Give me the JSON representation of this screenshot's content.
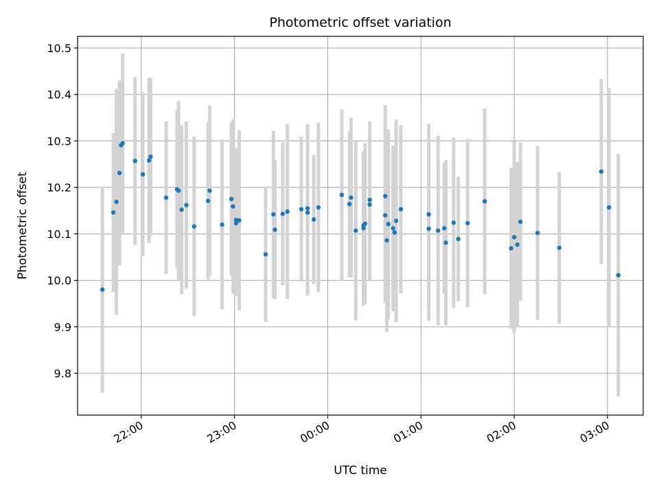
{
  "chart_data": {
    "type": "scatter",
    "title": "Photometric offset variation",
    "xlabel": "UTC time",
    "ylabel": "Photometric offset",
    "x_tick_labels": [
      "22:00",
      "23:00",
      "00:00",
      "01:00",
      "02:00",
      "03:00"
    ],
    "y_tick_labels": [
      "9.8",
      "9.9",
      "10.0",
      "10.1",
      "10.2",
      "10.3",
      "10.4",
      "10.5"
    ],
    "xlim": [
      "21:19",
      "03:23"
    ],
    "ylim": [
      9.71,
      10.525
    ],
    "grid": true,
    "colors": {
      "point": "#1f77b4",
      "error_bar": "#d3d3d3",
      "grid": "#b0b0b0"
    },
    "series": [
      {
        "points": [
          {
            "t": "21:35",
            "y": 9.98,
            "err": 0.222
          },
          {
            "t": "21:42",
            "y": 10.146,
            "err": 0.171
          },
          {
            "t": "21:44",
            "y": 10.169,
            "err": 0.243
          },
          {
            "t": "21:46",
            "y": 10.231,
            "err": 0.199
          },
          {
            "t": "21:47",
            "y": 10.291,
            "err": 0.136
          },
          {
            "t": "21:48",
            "y": 10.295,
            "err": 0.193
          },
          {
            "t": "21:56",
            "y": 10.257,
            "err": 0.181
          },
          {
            "t": "22:01",
            "y": 10.228,
            "err": 0.176
          },
          {
            "t": "22:05",
            "y": 10.258,
            "err": 0.178
          },
          {
            "t": "22:06",
            "y": 10.266,
            "err": 0.17
          },
          {
            "t": "22:16",
            "y": 10.178,
            "err": 0.164
          },
          {
            "t": "22:23",
            "y": 10.196,
            "err": 0.17
          },
          {
            "t": "22:24",
            "y": 10.193,
            "err": 0.193
          },
          {
            "t": "22:26",
            "y": 10.152,
            "err": 0.182
          },
          {
            "t": "22:29",
            "y": 10.162,
            "err": 0.18
          },
          {
            "t": "22:34",
            "y": 10.116,
            "err": 0.193
          },
          {
            "t": "22:43",
            "y": 10.171,
            "err": 0.169
          },
          {
            "t": "22:44",
            "y": 10.193,
            "err": 0.183
          },
          {
            "t": "22:52",
            "y": 10.12,
            "err": 0.183
          },
          {
            "t": "22:58",
            "y": 10.175,
            "err": 0.165
          },
          {
            "t": "22:59",
            "y": 10.159,
            "err": 0.188
          },
          {
            "t": "23:01",
            "y": 10.13,
            "err": 0.155
          },
          {
            "t": "23:01",
            "y": 10.123,
            "err": 0.157
          },
          {
            "t": "23:03",
            "y": 10.129,
            "err": 0.194
          },
          {
            "t": "23:20",
            "y": 10.056,
            "err": 0.146
          },
          {
            "t": "23:25",
            "y": 10.142,
            "err": 0.18
          },
          {
            "t": "23:26",
            "y": 10.109,
            "err": 0.15
          },
          {
            "t": "23:31",
            "y": 10.143,
            "err": 0.154
          },
          {
            "t": "23:34",
            "y": 10.148,
            "err": 0.188
          },
          {
            "t": "23:43",
            "y": 10.153,
            "err": 0.156
          },
          {
            "t": "23:47",
            "y": 10.155,
            "err": 0.181
          },
          {
            "t": "23:47",
            "y": 10.146,
            "err": 0.179
          },
          {
            "t": "23:51",
            "y": 10.131,
            "err": 0.139
          },
          {
            "t": "23:54",
            "y": 10.157,
            "err": 0.182
          },
          {
            "t": "00:09",
            "y": 10.184,
            "err": 0.184
          },
          {
            "t": "00:14",
            "y": 10.164,
            "err": 0.157
          },
          {
            "t": "00:15",
            "y": 10.178,
            "err": 0.172
          },
          {
            "t": "00:18",
            "y": 10.107,
            "err": 0.193
          },
          {
            "t": "00:23",
            "y": 10.118,
            "err": 0.16
          },
          {
            "t": "00:23",
            "y": 10.112,
            "err": 0.166
          },
          {
            "t": "00:24",
            "y": 10.122,
            "err": 0.173
          },
          {
            "t": "00:27",
            "y": 10.163,
            "err": 0.165
          },
          {
            "t": "00:27",
            "y": 10.173,
            "err": 0.169
          },
          {
            "t": "00:37",
            "y": 10.181,
            "err": 0.196
          },
          {
            "t": "00:37",
            "y": 10.14,
            "err": 0.188
          },
          {
            "t": "00:38",
            "y": 10.086,
            "err": 0.197
          },
          {
            "t": "00:39",
            "y": 10.121,
            "err": 0.204
          },
          {
            "t": "00:42",
            "y": 10.112,
            "err": 0.178
          },
          {
            "t": "00:43",
            "y": 10.103,
            "err": 0.17
          },
          {
            "t": "00:44",
            "y": 10.128,
            "err": 0.218
          },
          {
            "t": "00:47",
            "y": 10.153,
            "err": 0.181
          },
          {
            "t": "01:05",
            "y": 10.142,
            "err": 0.195
          },
          {
            "t": "01:05",
            "y": 10.111,
            "err": 0.198
          },
          {
            "t": "01:11",
            "y": 10.107,
            "err": 0.204
          },
          {
            "t": "01:15",
            "y": 10.112,
            "err": 0.141
          },
          {
            "t": "01:16",
            "y": 10.081,
            "err": 0.178
          },
          {
            "t": "01:21",
            "y": 10.124,
            "err": 0.183
          },
          {
            "t": "01:24",
            "y": 10.089,
            "err": 0.134
          },
          {
            "t": "01:30",
            "y": 10.123,
            "err": 0.181
          },
          {
            "t": "01:41",
            "y": 10.17,
            "err": 0.2
          },
          {
            "t": "01:58",
            "y": 10.069,
            "err": 0.173
          },
          {
            "t": "02:00",
            "y": 10.093,
            "err": 0.206
          },
          {
            "t": "02:02",
            "y": 10.077,
            "err": 0.178
          },
          {
            "t": "02:04",
            "y": 10.126,
            "err": 0.17
          },
          {
            "t": "02:15",
            "y": 10.102,
            "err": 0.187
          },
          {
            "t": "02:29",
            "y": 10.07,
            "err": 0.163
          },
          {
            "t": "02:56",
            "y": 10.234,
            "err": 0.199
          },
          {
            "t": "03:01",
            "y": 10.157,
            "err": 0.257
          },
          {
            "t": "03:07",
            "y": 10.011,
            "err": 0.261
          }
        ]
      }
    ]
  }
}
